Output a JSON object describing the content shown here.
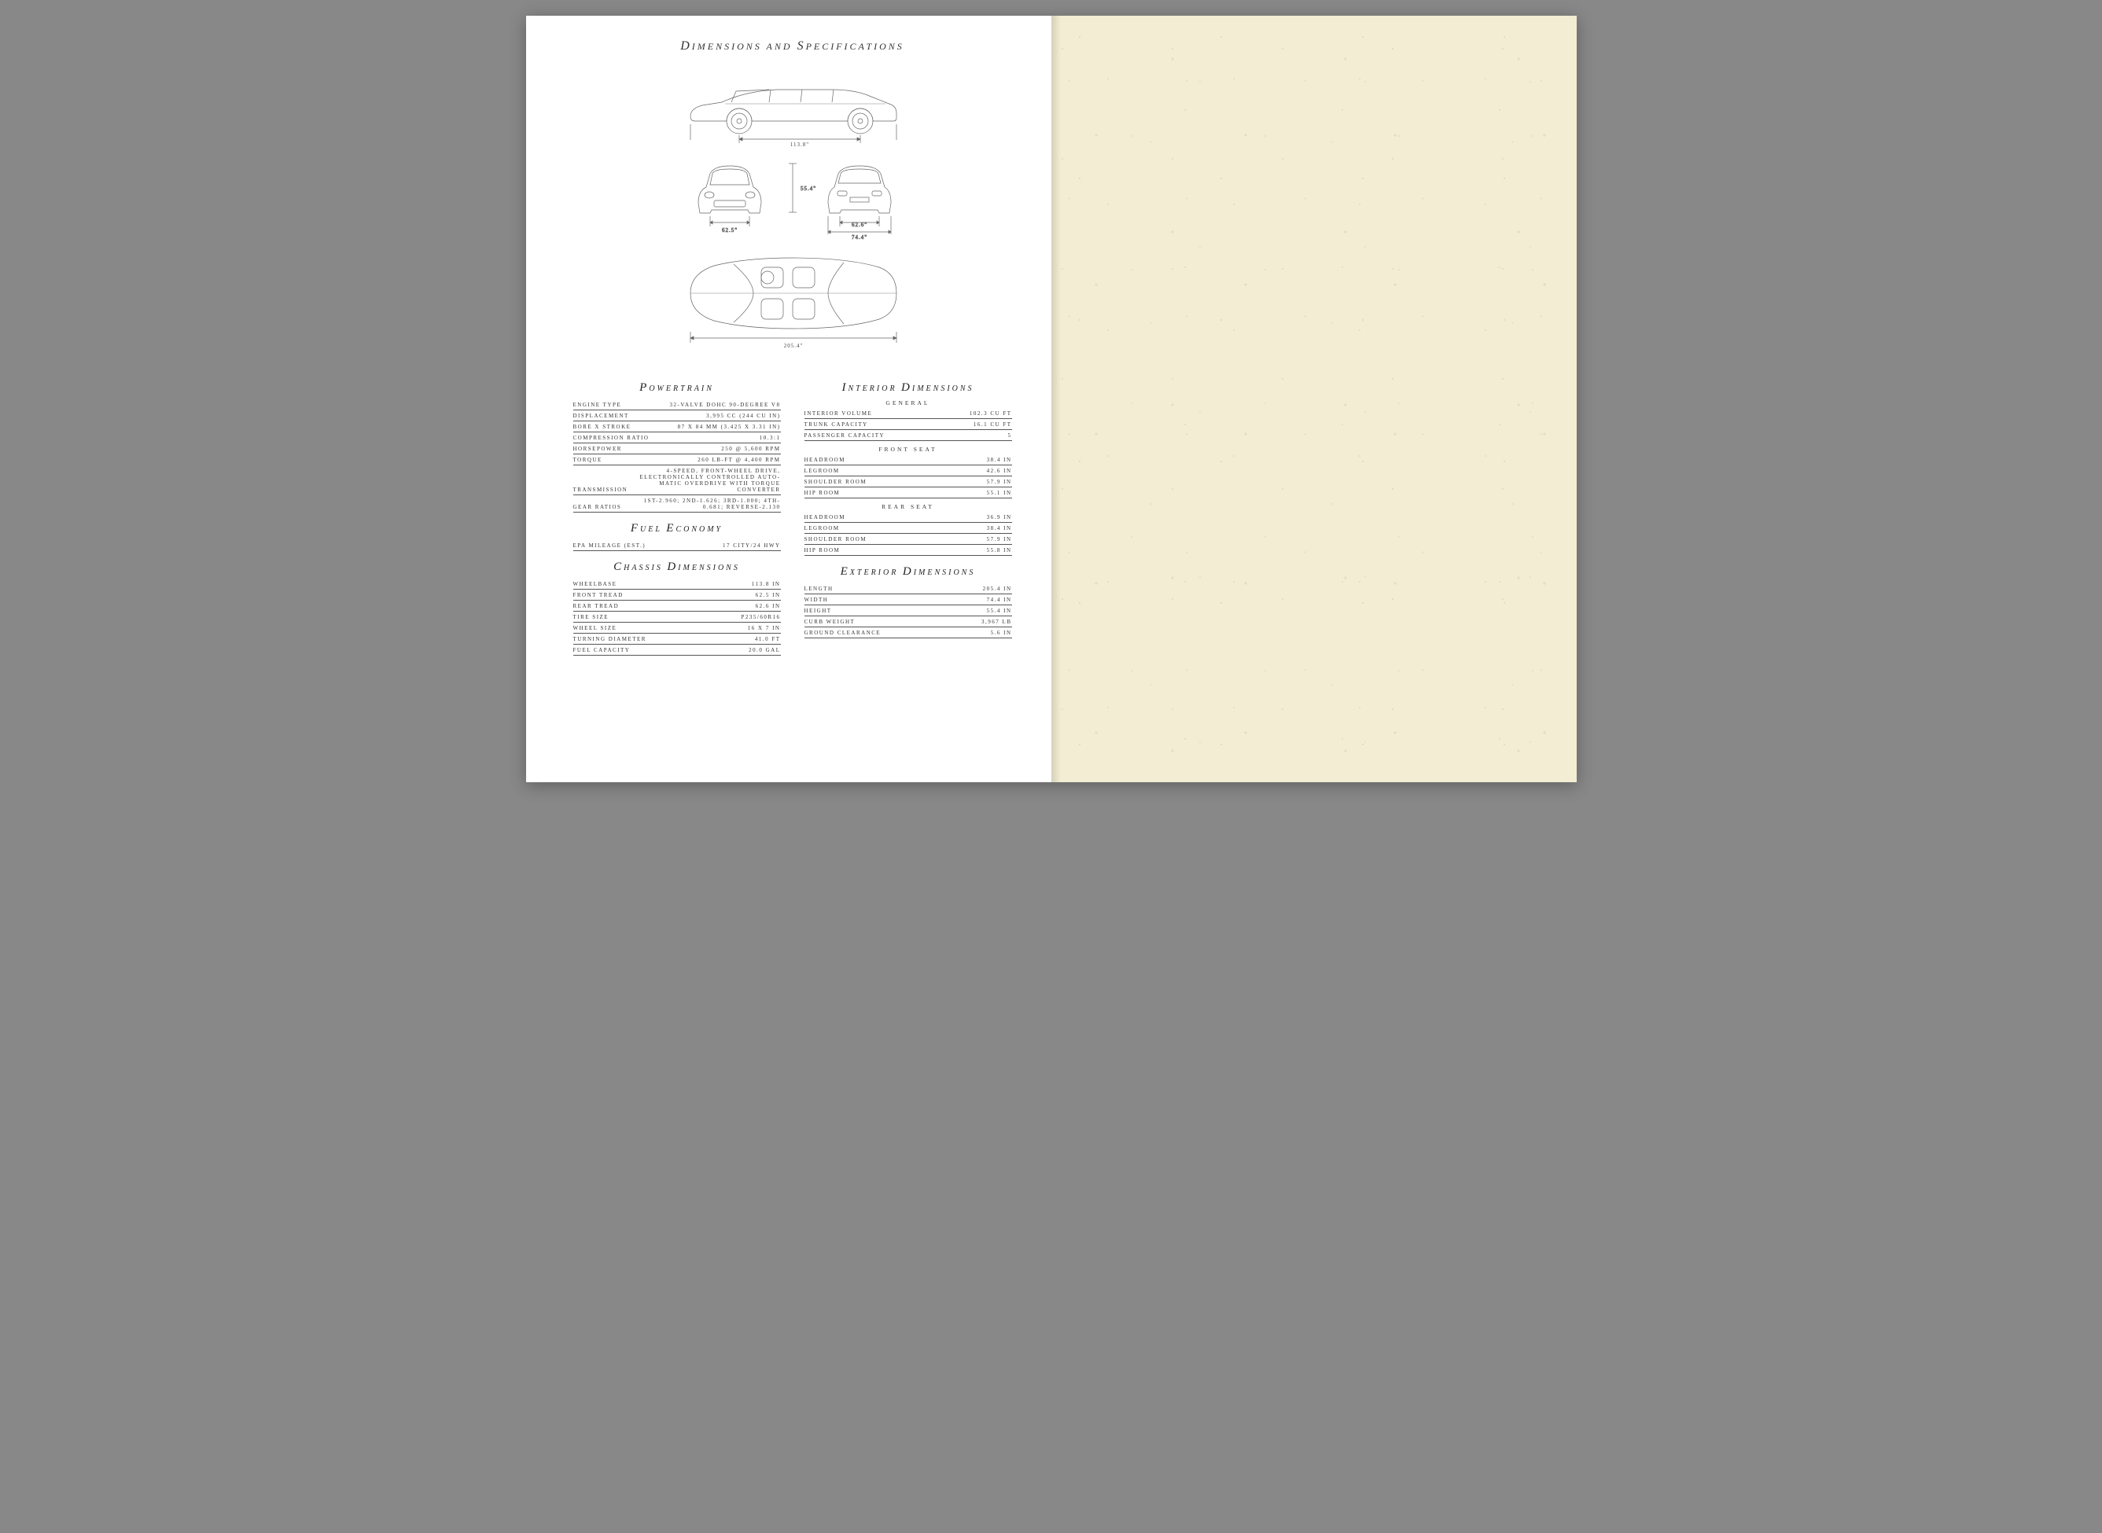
{
  "page": {
    "title_parts": [
      "D",
      "IMENSIONS AND ",
      "S",
      "PECIFICATIONS"
    ],
    "title_fontsize_cap": 16,
    "title_fontsize_small": 12,
    "background_left": "#ffffff",
    "background_right": "#f2edd3",
    "line_color": "#555555",
    "text_color": "#333333"
  },
  "drawings": {
    "side": {
      "wheelbase_label": "113.8\""
    },
    "front": {
      "track_label": "62.5\""
    },
    "rear": {
      "track_label": "62.6\"",
      "width_label": "74.4\""
    },
    "height": {
      "label": "55.4\""
    },
    "top": {
      "length_label": "205.4\""
    },
    "stroke_color": "#666666",
    "stroke_width": 0.7
  },
  "sections": {
    "powertrain": {
      "title_parts": [
        "P",
        "OWERTRAIN"
      ],
      "rows": [
        {
          "label": "ENGINE TYPE",
          "value": "32-VALVE DOHC 90-DEGREE V8"
        },
        {
          "label": "DISPLACEMENT",
          "value": "3,995 CC (244 CU IN)"
        },
        {
          "label": "BORE X STROKE",
          "value": "87 X 84 MM (3.425 X 3.31 IN)"
        },
        {
          "label": "COMPRESSION RATIO",
          "value": "10.3:1"
        },
        {
          "label": "HORSEPOWER",
          "value": "250 @ 5,600 RPM"
        },
        {
          "label": "TORQUE",
          "value": "260 LB-FT @ 4,400 RPM"
        },
        {
          "label": "TRANSMISSION",
          "value": "4-SPEED, FRONT-WHEEL DRIVE, ELECTRONICALLY CONTROLLED AUTO-MATIC OVERDRIVE WITH TORQUE CONVERTER"
        },
        {
          "label": "GEAR RATIOS",
          "value": "1ST-2.960; 2ND-1.626; 3RD-1.000; 4TH-0.681; REVERSE-2.130"
        }
      ]
    },
    "fuel": {
      "title_parts": [
        "F",
        "UEL ",
        "E",
        "CONOMY"
      ],
      "rows": [
        {
          "label": "EPA MILEAGE (EST.)",
          "value": "17 CITY/24 HWY"
        }
      ]
    },
    "chassis": {
      "title_parts": [
        "C",
        "HASSIS ",
        "D",
        "IMENSIONS"
      ],
      "rows": [
        {
          "label": "WHEELBASE",
          "value": "113.8 IN"
        },
        {
          "label": "FRONT TREAD",
          "value": "62.5 IN"
        },
        {
          "label": "REAR TREAD",
          "value": "62.6 IN"
        },
        {
          "label": "TIRE SIZE",
          "value": "P235/60R16"
        },
        {
          "label": "WHEEL SIZE",
          "value": "16 X 7 IN"
        },
        {
          "label": "TURNING DIAMETER",
          "value": "41.0 FT"
        },
        {
          "label": "FUEL CAPACITY",
          "value": "20.0 GAL"
        }
      ]
    },
    "interior": {
      "title_parts": [
        "I",
        "NTERIOR ",
        "D",
        "IMENSIONS"
      ],
      "subsections": [
        {
          "heading": "GENERAL",
          "rows": [
            {
              "label": "INTERIOR VOLUME",
              "value": "102.3 CU FT"
            },
            {
              "label": "TRUNK CAPACITY",
              "value": "16.1 CU FT"
            },
            {
              "label": "PASSENGER CAPACITY",
              "value": "5"
            }
          ]
        },
        {
          "heading": "FRONT SEAT",
          "rows": [
            {
              "label": "HEADROOM",
              "value": "38.4 IN"
            },
            {
              "label": "LEGROOM",
              "value": "42.6 IN"
            },
            {
              "label": "SHOULDER ROOM",
              "value": "57.9 IN"
            },
            {
              "label": "HIP ROOM",
              "value": "55.1 IN"
            }
          ]
        },
        {
          "heading": "REAR SEAT",
          "rows": [
            {
              "label": "HEADROOM",
              "value": "36.9 IN"
            },
            {
              "label": "LEGROOM",
              "value": "38.4 IN"
            },
            {
              "label": "SHOULDER ROOM",
              "value": "57.9 IN"
            },
            {
              "label": "HIP ROOM",
              "value": "55.8 IN"
            }
          ]
        }
      ]
    },
    "exterior": {
      "title_parts": [
        "E",
        "XTERIOR ",
        "D",
        "IMENSIONS"
      ],
      "rows": [
        {
          "label": "LENGTH",
          "value": "205.4 IN"
        },
        {
          "label": "WIDTH",
          "value": "74.4 IN"
        },
        {
          "label": "HEIGHT",
          "value": "55.4 IN"
        },
        {
          "label": "CURB WEIGHT",
          "value": "3,967 LB"
        },
        {
          "label": "GROUND CLEARANCE",
          "value": "5.6 IN"
        }
      ]
    }
  }
}
